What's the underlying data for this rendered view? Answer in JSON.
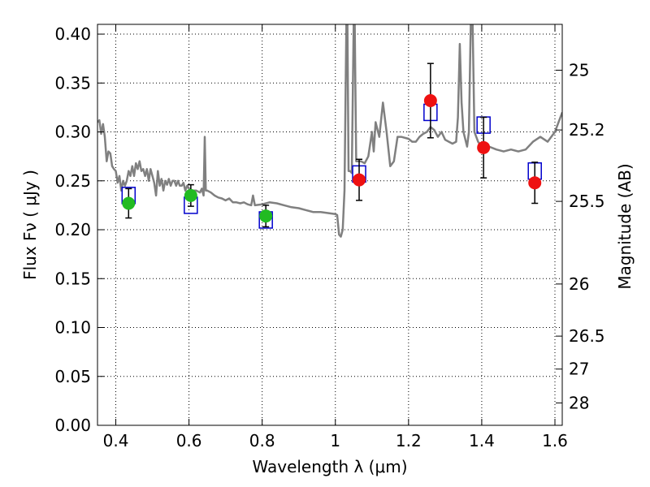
{
  "chart_data": {
    "type": "scatter",
    "xlabel": "Wavelength  λ (μm)",
    "ylabel": "Flux  Fν  ( μJy )",
    "y2label": "Magnitude (AB)",
    "xlim": [
      0.35,
      1.62
    ],
    "ylim": [
      0.0,
      0.41
    ],
    "grid": true,
    "x_ticks": [
      0.4,
      0.6,
      0.8,
      1.0,
      1.2,
      1.4,
      1.6
    ],
    "x_tick_labels": [
      "0.4",
      "0.6",
      "0.8",
      "1",
      "1.2",
      "1.4",
      "1.6"
    ],
    "y_ticks": [
      0.0,
      0.05,
      0.1,
      0.15,
      0.2,
      0.25,
      0.3,
      0.35,
      0.4
    ],
    "y_tick_labels": [
      "0.00",
      "0.05",
      "0.10",
      "0.15",
      "0.20",
      "0.25",
      "0.30",
      "0.35",
      "0.40"
    ],
    "y2_ticks": [
      {
        "label": "25",
        "flux": 0.3631
      },
      {
        "label": "25.2",
        "flux": 0.302
      },
      {
        "label": "25.5",
        "flux": 0.229
      },
      {
        "label": "26",
        "flux": 0.1445
      },
      {
        "label": "26.5",
        "flux": 0.0912
      },
      {
        "label": "27",
        "flux": 0.0575
      },
      {
        "label": "28",
        "flux": 0.0229
      }
    ],
    "colors": {
      "spectrum": "#808080",
      "model": "#0000cc",
      "optical": "#22bb22",
      "nir": "#ee1111",
      "grid": "#000000"
    },
    "spectrum": [
      [
        0.35,
        0.31
      ],
      [
        0.355,
        0.312
      ],
      [
        0.36,
        0.298
      ],
      [
        0.365,
        0.308
      ],
      [
        0.37,
        0.295
      ],
      [
        0.375,
        0.27
      ],
      [
        0.38,
        0.28
      ],
      [
        0.385,
        0.278
      ],
      [
        0.39,
        0.265
      ],
      [
        0.395,
        0.262
      ],
      [
        0.4,
        0.26
      ],
      [
        0.405,
        0.248
      ],
      [
        0.41,
        0.255
      ],
      [
        0.415,
        0.24
      ],
      [
        0.42,
        0.25
      ],
      [
        0.425,
        0.245
      ],
      [
        0.43,
        0.25
      ],
      [
        0.435,
        0.26
      ],
      [
        0.44,
        0.255
      ],
      [
        0.445,
        0.265
      ],
      [
        0.45,
        0.255
      ],
      [
        0.455,
        0.268
      ],
      [
        0.46,
        0.262
      ],
      [
        0.465,
        0.27
      ],
      [
        0.47,
        0.26
      ],
      [
        0.475,
        0.262
      ],
      [
        0.48,
        0.255
      ],
      [
        0.485,
        0.262
      ],
      [
        0.49,
        0.25
      ],
      [
        0.495,
        0.262
      ],
      [
        0.5,
        0.255
      ],
      [
        0.505,
        0.248
      ],
      [
        0.51,
        0.235
      ],
      [
        0.515,
        0.26
      ],
      [
        0.52,
        0.245
      ],
      [
        0.525,
        0.252
      ],
      [
        0.53,
        0.24
      ],
      [
        0.535,
        0.25
      ],
      [
        0.54,
        0.246
      ],
      [
        0.545,
        0.252
      ],
      [
        0.55,
        0.245
      ],
      [
        0.555,
        0.25
      ],
      [
        0.56,
        0.25
      ],
      [
        0.565,
        0.245
      ],
      [
        0.57,
        0.25
      ],
      [
        0.575,
        0.245
      ],
      [
        0.58,
        0.245
      ],
      [
        0.585,
        0.248
      ],
      [
        0.59,
        0.24
      ],
      [
        0.595,
        0.245
      ],
      [
        0.6,
        0.242
      ],
      [
        0.61,
        0.24
      ],
      [
        0.62,
        0.24
      ],
      [
        0.63,
        0.238
      ],
      [
        0.635,
        0.242
      ],
      [
        0.64,
        0.235
      ],
      [
        0.643,
        0.295
      ],
      [
        0.646,
        0.24
      ],
      [
        0.65,
        0.24
      ],
      [
        0.66,
        0.238
      ],
      [
        0.67,
        0.235
      ],
      [
        0.68,
        0.233
      ],
      [
        0.69,
        0.232
      ],
      [
        0.7,
        0.23
      ],
      [
        0.71,
        0.232
      ],
      [
        0.72,
        0.228
      ],
      [
        0.73,
        0.228
      ],
      [
        0.74,
        0.227
      ],
      [
        0.75,
        0.228
      ],
      [
        0.76,
        0.226
      ],
      [
        0.77,
        0.225
      ],
      [
        0.775,
        0.235
      ],
      [
        0.78,
        0.225
      ],
      [
        0.8,
        0.226
      ],
      [
        0.82,
        0.228
      ],
      [
        0.84,
        0.227
      ],
      [
        0.86,
        0.225
      ],
      [
        0.88,
        0.223
      ],
      [
        0.9,
        0.222
      ],
      [
        0.92,
        0.22
      ],
      [
        0.94,
        0.218
      ],
      [
        0.96,
        0.218
      ],
      [
        0.98,
        0.217
      ],
      [
        1.0,
        0.216
      ],
      [
        1.005,
        0.215
      ],
      [
        1.01,
        0.195
      ],
      [
        1.015,
        0.193
      ],
      [
        1.02,
        0.2
      ],
      [
        1.025,
        0.24
      ],
      [
        1.03,
        0.41
      ],
      [
        1.033,
        0.41
      ],
      [
        1.036,
        0.26
      ],
      [
        1.04,
        0.26
      ],
      [
        1.045,
        0.258
      ],
      [
        1.05,
        0.41
      ],
      [
        1.053,
        0.41
      ],
      [
        1.057,
        0.27
      ],
      [
        1.06,
        0.27
      ],
      [
        1.07,
        0.27
      ],
      [
        1.08,
        0.268
      ],
      [
        1.09,
        0.275
      ],
      [
        1.1,
        0.3
      ],
      [
        1.105,
        0.28
      ],
      [
        1.11,
        0.31
      ],
      [
        1.12,
        0.295
      ],
      [
        1.13,
        0.33
      ],
      [
        1.14,
        0.3
      ],
      [
        1.15,
        0.265
      ],
      [
        1.16,
        0.27
      ],
      [
        1.17,
        0.295
      ],
      [
        1.18,
        0.295
      ],
      [
        1.2,
        0.293
      ],
      [
        1.21,
        0.29
      ],
      [
        1.22,
        0.29
      ],
      [
        1.23,
        0.295
      ],
      [
        1.24,
        0.298
      ],
      [
        1.25,
        0.3
      ],
      [
        1.26,
        0.305
      ],
      [
        1.27,
        0.302
      ],
      [
        1.28,
        0.295
      ],
      [
        1.29,
        0.3
      ],
      [
        1.3,
        0.292
      ],
      [
        1.31,
        0.29
      ],
      [
        1.32,
        0.288
      ],
      [
        1.33,
        0.29
      ],
      [
        1.335,
        0.315
      ],
      [
        1.34,
        0.39
      ],
      [
        1.345,
        0.33
      ],
      [
        1.35,
        0.3
      ],
      [
        1.36,
        0.285
      ],
      [
        1.365,
        0.3
      ],
      [
        1.37,
        0.41
      ],
      [
        1.375,
        0.41
      ],
      [
        1.38,
        0.3
      ],
      [
        1.39,
        0.29
      ],
      [
        1.4,
        0.285
      ],
      [
        1.42,
        0.285
      ],
      [
        1.44,
        0.282
      ],
      [
        1.46,
        0.28
      ],
      [
        1.48,
        0.282
      ],
      [
        1.5,
        0.28
      ],
      [
        1.52,
        0.282
      ],
      [
        1.54,
        0.29
      ],
      [
        1.56,
        0.295
      ],
      [
        1.58,
        0.29
      ],
      [
        1.6,
        0.3
      ],
      [
        1.62,
        0.32
      ]
    ],
    "model_points": [
      {
        "x": 0.435,
        "y": 0.235
      },
      {
        "x": 0.605,
        "y": 0.225
      },
      {
        "x": 0.81,
        "y": 0.21
      },
      {
        "x": 1.065,
        "y": 0.257
      },
      {
        "x": 1.26,
        "y": 0.32
      },
      {
        "x": 1.405,
        "y": 0.307
      },
      {
        "x": 1.545,
        "y": 0.26
      }
    ],
    "observed_optical": [
      {
        "x": 0.435,
        "y": 0.227,
        "yerr": 0.015
      },
      {
        "x": 0.605,
        "y": 0.235,
        "yerr": 0.011
      },
      {
        "x": 0.81,
        "y": 0.214,
        "yerr": 0.011
      }
    ],
    "observed_nir": [
      {
        "x": 1.065,
        "y": 0.251,
        "yerr": 0.021
      },
      {
        "x": 1.26,
        "y": 0.332,
        "yerr": 0.038
      },
      {
        "x": 1.405,
        "y": 0.284,
        "yerr": 0.031
      },
      {
        "x": 1.545,
        "y": 0.248,
        "yerr": 0.021
      }
    ]
  }
}
